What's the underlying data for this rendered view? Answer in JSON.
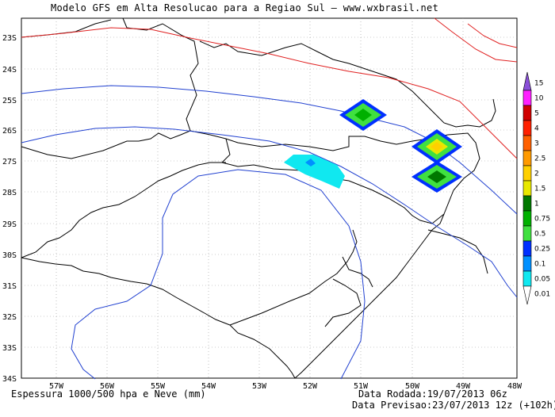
{
  "header": {
    "title": "Modelo GFS em Alta Resolucao para a Regiao Sul — www.wxbrasil.net"
  },
  "map": {
    "lat_labels": [
      "23S",
      "24S",
      "25S",
      "26S",
      "27S",
      "28S",
      "29S",
      "30S",
      "31S",
      "32S",
      "33S",
      "34S"
    ],
    "lon_labels": [
      "57W",
      "56W",
      "55W",
      "54W",
      "53W",
      "52W",
      "51W",
      "50W",
      "49W",
      "48W"
    ],
    "extent": {
      "lon": [
        -58,
        -48
      ],
      "lat": [
        -34,
        -22.7
      ]
    },
    "grid": true,
    "thickness_line_colors": {
      "warm": "#e02020",
      "cold": "#2040d0"
    },
    "border_color": "#000000"
  },
  "colorbar": {
    "levels": [
      "15",
      "10",
      "5",
      "4",
      "3",
      "2.5",
      "2",
      "1.5",
      "1",
      "0.75",
      "0.5",
      "0.25",
      "0.1",
      "0.05",
      "0.01"
    ],
    "colors": [
      "#8a4fd8",
      "#ff20ff",
      "#d00000",
      "#ff2000",
      "#ff6000",
      "#ff9a00",
      "#ffd000",
      "#e8e800",
      "#007800",
      "#00b000",
      "#40e040",
      "#0030ff",
      "#0090ff",
      "#10e8f0",
      "#ffffff"
    ]
  },
  "footer": {
    "left": "Espessura 1000/500 hpa e Neve (mm)",
    "run_label": "Data Rodada:19/07/2013 06z",
    "forecast_label": "Data Previsao:23/07/2013 12z (+102h)"
  }
}
